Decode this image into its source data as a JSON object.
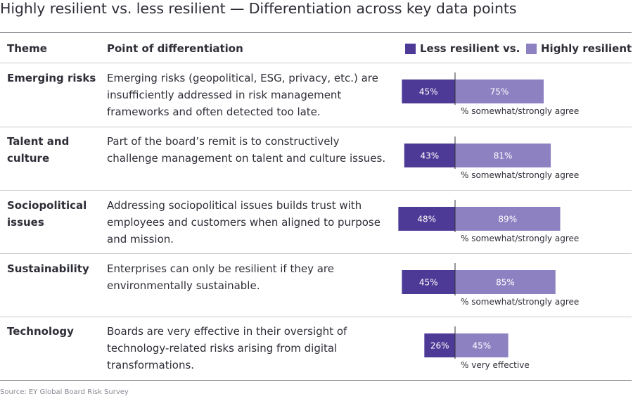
{
  "title": "Highly resilient vs. less resilient — Differentiation across key data points",
  "header": {
    "theme": "Theme",
    "point": "Point of differentiation"
  },
  "legend": [
    {
      "label": "Less resilient vs.",
      "color": "#4d3a96"
    },
    {
      "label": "Highly resilient",
      "color": "#8e81c2"
    }
  ],
  "rows": [
    {
      "theme": "Emerging risks",
      "description": "Emerging risks (geopolitical, ESG, privacy, etc.) are insufficiently addressed in risk management frameworks and often detected too late."
    },
    {
      "theme": "Talent and culture",
      "description": "Part of the board’s remit is to constructively challenge management on talent and culture issues."
    },
    {
      "theme": "Sociopolitical issues",
      "description": "Addressing sociopolitical issues builds trust with employees and customers when aligned to purpose and mission."
    },
    {
      "theme": "Sustainability",
      "description": "Enterprises can only be resilient if they are environmentally sustainable."
    },
    {
      "theme": "Technology",
      "description": "Boards are very effective in their oversight of technology-related risks arising from digital transformations."
    }
  ],
  "chart_data": {
    "type": "bar",
    "orientation": "horizontal-diverging",
    "title": "Highly resilient vs. less resilient — Differentiation across key data points",
    "categories": [
      "Emerging risks",
      "Talent and culture",
      "Sociopolitical issues",
      "Sustainability",
      "Technology"
    ],
    "series": [
      {
        "name": "Less resilient vs.",
        "values": [
          45,
          43,
          48,
          45,
          26
        ],
        "labels": [
          "45%",
          "43%",
          "48%",
          "45%",
          "26%"
        ],
        "color": "#4d3a96",
        "label_color": "#ffffff"
      },
      {
        "name": "Highly resilient",
        "values": [
          75,
          81,
          89,
          85,
          45
        ],
        "labels": [
          "75%",
          "81%",
          "89%",
          "85%",
          "45%"
        ],
        "color": "#8e81c2",
        "label_color": "#ffffff"
      }
    ],
    "notes": [
      "% somewhat/strongly agree",
      "% somewhat/strongly agree",
      "% somewhat/strongly agree",
      "% somewhat/strongly agree",
      "% very effective"
    ],
    "unit": "%",
    "xlim": [
      0,
      100
    ]
  },
  "source": "Source: EY Global Board Risk Survey"
}
